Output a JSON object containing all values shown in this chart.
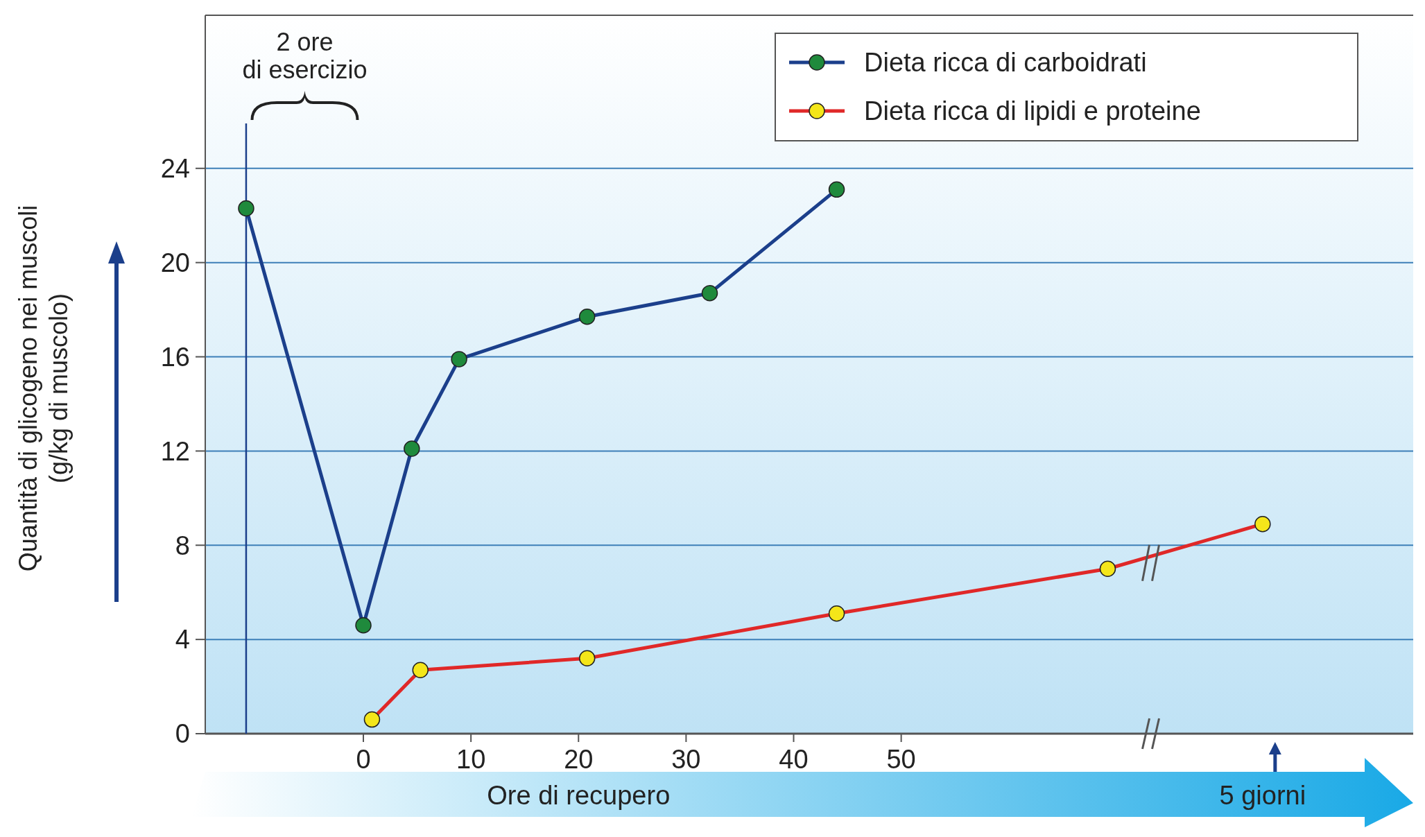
{
  "chart_data": {
    "type": "line",
    "xlabel": "Ore di recupero",
    "ylabel": "Quantità di glicogeno nei muscoli\n(g/kg di muscolo)",
    "xlim": [
      -14.7,
      97.6
    ],
    "xticks": [
      0,
      10,
      20,
      30,
      40,
      50
    ],
    "ylim": [
      0,
      30.5
    ],
    "yticks": [
      0,
      4,
      8,
      12,
      16,
      20,
      24
    ],
    "grid": "y",
    "legend": "top right",
    "marker": "circle",
    "line_style": "solid",
    "series": [
      {
        "name": "Dieta ricca di carboidrati",
        "color": "#1b3f8b",
        "x": [
          -10.9,
          0,
          4.5,
          8.9,
          20.8,
          32.2,
          44.0
        ],
        "values": [
          22.3,
          4.6,
          12.1,
          15.9,
          17.7,
          18.7,
          23.1
        ]
      },
      {
        "name": "Dieta ricca di lipidi e proteine",
        "color": "#e02828",
        "x": [
          0.8,
          5.3,
          20.8,
          44.0,
          69.2,
          83.6
        ],
        "values": [
          0.6,
          2.7,
          3.2,
          5.1,
          7.0,
          8.9
        ]
      }
    ],
    "ref_lines": [
      {
        "axis": "x",
        "value": -10.9,
        "color": "#1b3f8b"
      }
    ],
    "annotations": [
      "2 ore\ndi esercizio",
      "5 giorni"
    ]
  }
}
